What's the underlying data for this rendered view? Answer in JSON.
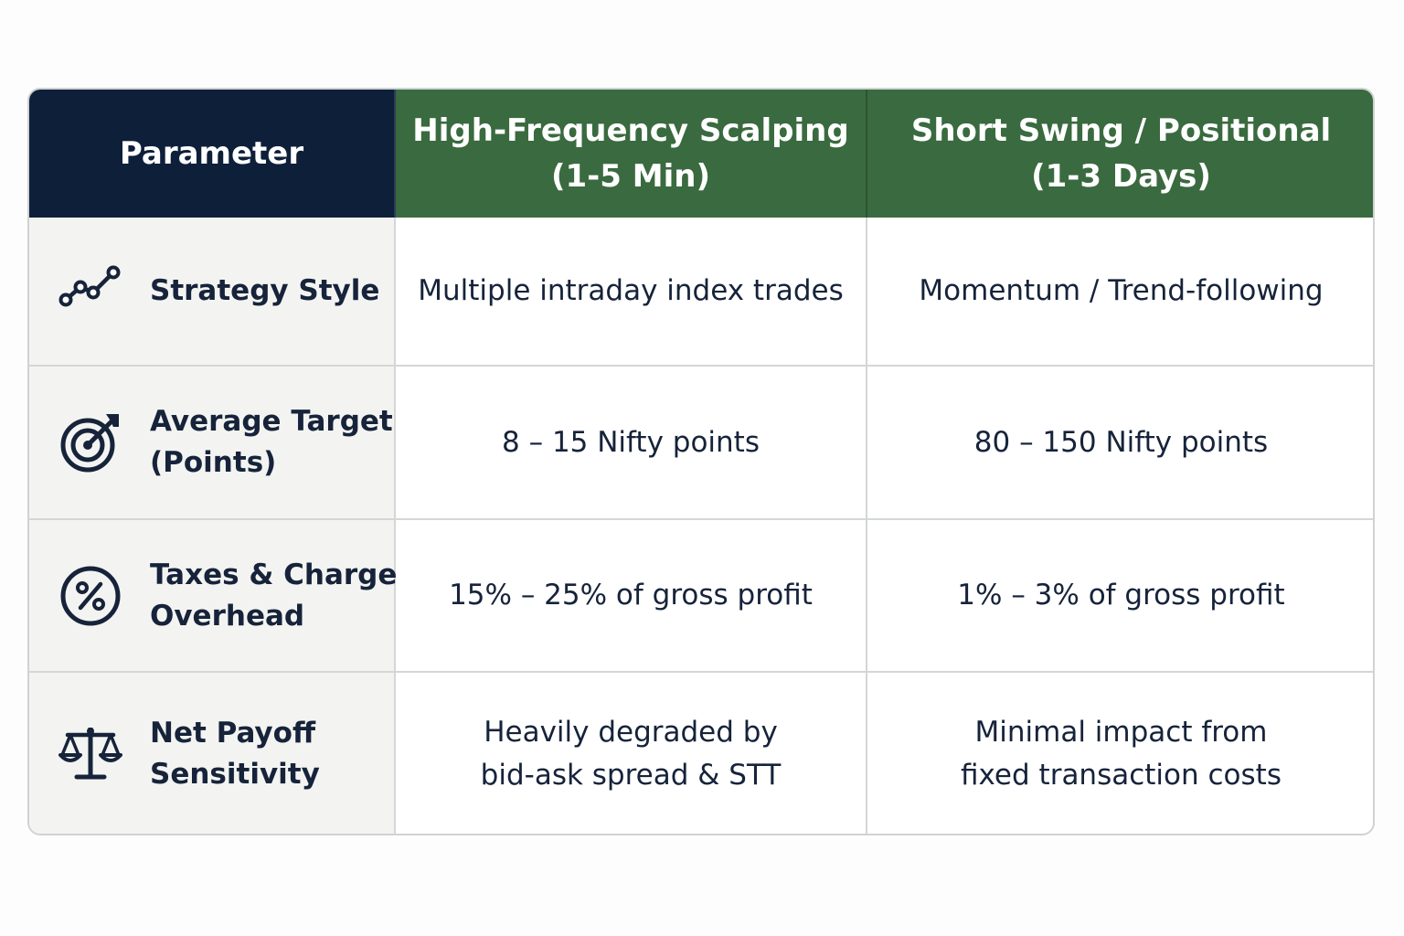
{
  "header": {
    "parameter": "Parameter",
    "col1": {
      "line1": "High-Frequency Scalping",
      "line2": "(1-5 Min)"
    },
    "col2": {
      "line1": "Short Swing / Positional",
      "line2": "(1-3 Days)"
    }
  },
  "rows": [
    {
      "icon": "trend-line-icon",
      "label": {
        "line1": "Strategy Style",
        "line2": ""
      },
      "col1": {
        "line1": "Multiple intraday index trades",
        "line2": ""
      },
      "col2": {
        "line1": "Momentum / Trend-following",
        "line2": ""
      }
    },
    {
      "icon": "target-icon",
      "label": {
        "line1": "Average Target",
        "line2": "(Points)"
      },
      "col1": {
        "line1": "8 – 15 Nifty points",
        "line2": ""
      },
      "col2": {
        "line1": "80 – 150 Nifty points",
        "line2": ""
      }
    },
    {
      "icon": "percent-icon",
      "label": {
        "line1": "Taxes & Charges",
        "line2": "Overhead"
      },
      "col1": {
        "line1": "15% – 25% of gross profit",
        "line2": ""
      },
      "col2": {
        "line1": "1% – 3% of gross profit",
        "line2": ""
      }
    },
    {
      "icon": "scales-icon",
      "label": {
        "line1": "Net Payoff",
        "line2": "Sensitivity"
      },
      "col1": {
        "line1": "Heavily degraded by",
        "line2": "bid-ask spread & STT"
      },
      "col2": {
        "line1": "Minimal impact from",
        "line2": "fixed transaction costs"
      }
    }
  ],
  "colors": {
    "header_param_bg": "#0e1f3a",
    "header_green_bg": "#3a6a3f",
    "param_cell_bg": "#f3f4f1",
    "text": "#16233a"
  }
}
